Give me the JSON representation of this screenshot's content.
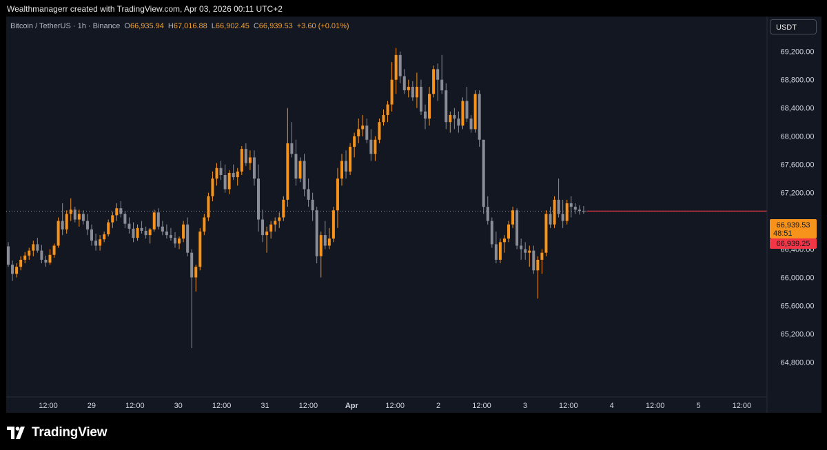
{
  "header": {
    "credit": "Wealthmanagerr created with TradingView.com, Apr 03, 2026 00:11 UTC+2"
  },
  "legend": {
    "symbol": "Bitcoin / TetherUS · 1h · Binance",
    "o_label": "O",
    "o_value": "66,935.94",
    "h_label": "H",
    "h_value": "67,016.88",
    "l_label": "L",
    "l_value": "66,902.45",
    "c_label": "C",
    "c_value": "66,939.53",
    "change": "+3.60 (+0.01%)"
  },
  "unit_button": {
    "label": "USDT"
  },
  "price_tags": {
    "last_price": "66,939.53",
    "countdown": "48:51",
    "bid_price": "66,939.25"
  },
  "footer": {
    "brand": "TradingView"
  },
  "colors": {
    "up": "#f7931a",
    "down": "#8a8d96",
    "background": "#131722",
    "last_price_line": "#f23645"
  },
  "chart_data": {
    "type": "candlestick",
    "symbol": "BTCUSDT",
    "interval": "1h",
    "last_price": 66939.53,
    "ylim": [
      64600,
      69500
    ],
    "y_ticks": [
      69200,
      68800,
      68400,
      68000,
      67600,
      67200,
      66400,
      66000,
      65600,
      65200,
      64800
    ],
    "y_tick_labels": [
      "69,200.00",
      "68,800.00",
      "68,400.00",
      "68,000.00",
      "67,600.00",
      "67,200.00",
      "66,400.00",
      "66,000.00",
      "65,600.00",
      "65,200.00",
      "64,800.00"
    ],
    "x_tick_labels": [
      "12:00",
      "29",
      "12:00",
      "30",
      "12:00",
      "31",
      "12:00",
      "Apr",
      "12:00",
      "2",
      "12:00",
      "3",
      "12:00",
      "4",
      "12:00",
      "5",
      "12:00"
    ],
    "ohlc": [
      [
        66440,
        66500,
        66150,
        66180
      ],
      [
        66180,
        66240,
        65950,
        66050
      ],
      [
        66050,
        66200,
        66000,
        66150
      ],
      [
        66150,
        66300,
        66100,
        66250
      ],
      [
        66250,
        66360,
        66200,
        66310
      ],
      [
        66310,
        66420,
        66250,
        66380
      ],
      [
        66380,
        66520,
        66300,
        66470
      ],
      [
        66470,
        66560,
        66350,
        66380
      ],
      [
        66380,
        66460,
        66200,
        66250
      ],
      [
        66250,
        66310,
        66150,
        66210
      ],
      [
        66210,
        66400,
        66180,
        66320
      ],
      [
        66320,
        66480,
        66280,
        66450
      ],
      [
        66450,
        66850,
        66420,
        66800
      ],
      [
        66800,
        67050,
        66600,
        66680
      ],
      [
        66680,
        66950,
        66620,
        66900
      ],
      [
        66900,
        67120,
        66800,
        66960
      ],
      [
        66960,
        67000,
        66780,
        66820
      ],
      [
        66820,
        66960,
        66720,
        66900
      ],
      [
        66900,
        66950,
        66750,
        66800
      ],
      [
        66800,
        66900,
        66600,
        66680
      ],
      [
        66680,
        66750,
        66450,
        66520
      ],
      [
        66520,
        66620,
        66380,
        66450
      ],
      [
        66450,
        66600,
        66380,
        66540
      ],
      [
        66540,
        66650,
        66500,
        66610
      ],
      [
        66610,
        66820,
        66580,
        66780
      ],
      [
        66780,
        66930,
        66700,
        66880
      ],
      [
        66880,
        67050,
        66800,
        66980
      ],
      [
        66980,
        67080,
        66850,
        66900
      ],
      [
        66900,
        66940,
        66700,
        66760
      ],
      [
        66760,
        66850,
        66620,
        66690
      ],
      [
        66690,
        66780,
        66500,
        66560
      ],
      [
        66560,
        66750,
        66520,
        66700
      ],
      [
        66700,
        66800,
        66620,
        66660
      ],
      [
        66660,
        66720,
        66550,
        66600
      ],
      [
        66600,
        66700,
        66480,
        66680
      ],
      [
        66680,
        66960,
        66650,
        66920
      ],
      [
        66920,
        66980,
        66680,
        66720
      ],
      [
        66720,
        66800,
        66600,
        66650
      ],
      [
        66650,
        66750,
        66550,
        66600
      ],
      [
        66600,
        66700,
        66520,
        66560
      ],
      [
        66560,
        66640,
        66420,
        66480
      ],
      [
        66480,
        66580,
        66400,
        66550
      ],
      [
        66550,
        66800,
        66500,
        66750
      ],
      [
        66750,
        66850,
        66300,
        66350
      ],
      [
        66350,
        66400,
        65000,
        66000
      ],
      [
        66000,
        66180,
        65800,
        66150
      ],
      [
        66150,
        66700,
        66100,
        66650
      ],
      [
        66650,
        66900,
        66600,
        66850
      ],
      [
        66850,
        67200,
        66800,
        67150
      ],
      [
        67150,
        67500,
        67080,
        67400
      ],
      [
        67400,
        67620,
        67300,
        67550
      ],
      [
        67550,
        67650,
        67380,
        67450
      ],
      [
        67450,
        67600,
        67200,
        67250
      ],
      [
        67250,
        67520,
        67180,
        67480
      ],
      [
        67480,
        67600,
        67380,
        67420
      ],
      [
        67420,
        67550,
        67300,
        67500
      ],
      [
        67500,
        67860,
        67450,
        67820
      ],
      [
        67820,
        67900,
        67580,
        67620
      ],
      [
        67620,
        67800,
        67520,
        67700
      ],
      [
        67700,
        67800,
        67300,
        67400
      ],
      [
        67400,
        67600,
        66650,
        66820
      ],
      [
        66820,
        66960,
        66500,
        66600
      ],
      [
        66600,
        66720,
        66350,
        66650
      ],
      [
        66650,
        66800,
        66550,
        66750
      ],
      [
        66750,
        66850,
        66650,
        66800
      ],
      [
        66800,
        66920,
        66700,
        66850
      ],
      [
        66850,
        67150,
        66800,
        67100
      ],
      [
        67100,
        68400,
        67000,
        67900
      ],
      [
        67900,
        68200,
        67700,
        67750
      ],
      [
        67750,
        67950,
        67300,
        67400
      ],
      [
        67400,
        67700,
        67350,
        67650
      ],
      [
        67650,
        67750,
        67150,
        67250
      ],
      [
        67250,
        67400,
        67000,
        67100
      ],
      [
        67100,
        67200,
        66800,
        66950
      ],
      [
        66950,
        67000,
        66200,
        66300
      ],
      [
        66300,
        66650,
        66000,
        66600
      ],
      [
        66600,
        66800,
        66400,
        66450
      ],
      [
        66450,
        66700,
        66400,
        66550
      ],
      [
        66550,
        67000,
        66500,
        66950
      ],
      [
        66950,
        67550,
        66700,
        67400
      ],
      [
        67400,
        67750,
        67300,
        67650
      ],
      [
        67650,
        67800,
        67400,
        67500
      ],
      [
        67500,
        67900,
        67450,
        67850
      ],
      [
        67850,
        68050,
        67700,
        68000
      ],
      [
        68000,
        68250,
        67900,
        68100
      ],
      [
        68100,
        68300,
        68000,
        68150
      ],
      [
        68150,
        68250,
        67900,
        67950
      ],
      [
        67950,
        68100,
        67650,
        67750
      ],
      [
        67750,
        68000,
        67650,
        67950
      ],
      [
        67950,
        68250,
        67900,
        68200
      ],
      [
        68200,
        68380,
        68150,
        68300
      ],
      [
        68300,
        68500,
        68200,
        68450
      ],
      [
        68450,
        69050,
        68350,
        68800
      ],
      [
        68800,
        69250,
        68600,
        69150
      ],
      [
        69150,
        69200,
        68750,
        68850
      ],
      [
        68850,
        68950,
        68600,
        68650
      ],
      [
        68650,
        68800,
        68550,
        68700
      ],
      [
        68700,
        68780,
        68500,
        68550
      ],
      [
        68550,
        68900,
        68400,
        68700
      ],
      [
        68700,
        68800,
        68300,
        68350
      ],
      [
        68350,
        68450,
        68100,
        68250
      ],
      [
        68250,
        68700,
        68150,
        68600
      ],
      [
        68600,
        69000,
        68550,
        68950
      ],
      [
        68950,
        69030,
        68500,
        68800
      ],
      [
        68800,
        69150,
        68600,
        68650
      ],
      [
        68650,
        68750,
        68100,
        68200
      ],
      [
        68200,
        68350,
        68050,
        68300
      ],
      [
        68300,
        68400,
        68100,
        68250
      ],
      [
        68250,
        68350,
        68050,
        68150
      ],
      [
        68150,
        68550,
        68100,
        68500
      ],
      [
        68500,
        68700,
        68200,
        68250
      ],
      [
        68250,
        68300,
        68050,
        68100
      ],
      [
        68100,
        68650,
        68050,
        68600
      ],
      [
        68600,
        68650,
        67850,
        67950
      ],
      [
        67950,
        67950,
        66900,
        67000
      ],
      [
        67000,
        67150,
        66750,
        66800
      ],
      [
        66800,
        66850,
        66420,
        66470
      ],
      [
        66470,
        66650,
        66200,
        66250
      ],
      [
        66250,
        66550,
        66200,
        66500
      ],
      [
        66500,
        66600,
        66350,
        66550
      ],
      [
        66550,
        66800,
        66500,
        66750
      ],
      [
        66750,
        67000,
        66700,
        66950
      ],
      [
        66950,
        66980,
        66400,
        66450
      ],
      [
        66450,
        66550,
        66250,
        66400
      ],
      [
        66400,
        66500,
        66250,
        66350
      ],
      [
        66350,
        66450,
        66150,
        66380
      ],
      [
        66380,
        66450,
        66050,
        66100
      ],
      [
        66100,
        66300,
        65700,
        66250
      ],
      [
        66250,
        66400,
        66050,
        66350
      ],
      [
        66350,
        66950,
        66300,
        66900
      ],
      [
        66900,
        67000,
        66700,
        66750
      ],
      [
        66750,
        67150,
        66700,
        67100
      ],
      [
        67100,
        67400,
        66850,
        66900
      ],
      [
        66900,
        67100,
        66700,
        66800
      ],
      [
        66800,
        67100,
        66750,
        67050
      ],
      [
        67050,
        67150,
        66850,
        67000
      ],
      [
        67000,
        67050,
        66900,
        66960
      ],
      [
        66960,
        67020,
        66890,
        66940
      ],
      [
        66940,
        67010,
        66900,
        66939.53
      ]
    ]
  }
}
